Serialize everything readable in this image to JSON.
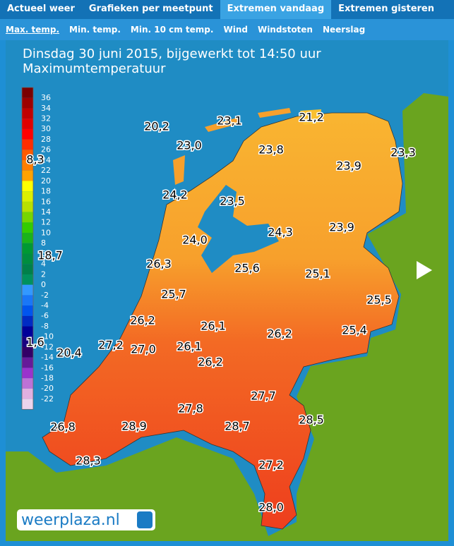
{
  "tabs": [
    "Actueel weer",
    "Grafieken per meetpunt",
    "Extremen vandaag",
    "Extremen gisteren"
  ],
  "active_tab": 2,
  "subtabs": [
    "Max. temp.",
    "Min. temp.",
    "Min. 10 cm temp.",
    "Wind",
    "Windstoten",
    "Neerslag"
  ],
  "active_subtab": 0,
  "map": {
    "title": "Dinsdag 30 juni 2015, bijgewerkt tot 14:50 uur",
    "subtitle": "Maximumtemperatuur",
    "scale_ticks": [
      36,
      34,
      32,
      30,
      28,
      26,
      24,
      22,
      20,
      18,
      16,
      14,
      12,
      10,
      8,
      6,
      4,
      2,
      0,
      -2,
      -4,
      -6,
      -8,
      -10,
      -12,
      -14,
      -16,
      -18,
      -20,
      -22
    ],
    "readings": [
      "20,2",
      "23,1",
      "21,2",
      "23,0",
      "23,8",
      "23,3",
      "8,3",
      "23,9",
      "24,2",
      "23,5",
      "24,3",
      "23,9",
      "24,0",
      "18,7",
      "26,3",
      "25,6",
      "25,1",
      "25,7",
      "25,5",
      "26,2",
      "26,1",
      "26,2",
      "25,4",
      "1,6",
      "27,2",
      "27,0",
      "26,1",
      "20,4",
      "26,2",
      "27,7",
      "27,8",
      "28,9",
      "28,7",
      "28,5",
      "26,8",
      "28,3",
      "27,2",
      "28,0"
    ],
    "logo": "weerplaza.nl"
  }
}
